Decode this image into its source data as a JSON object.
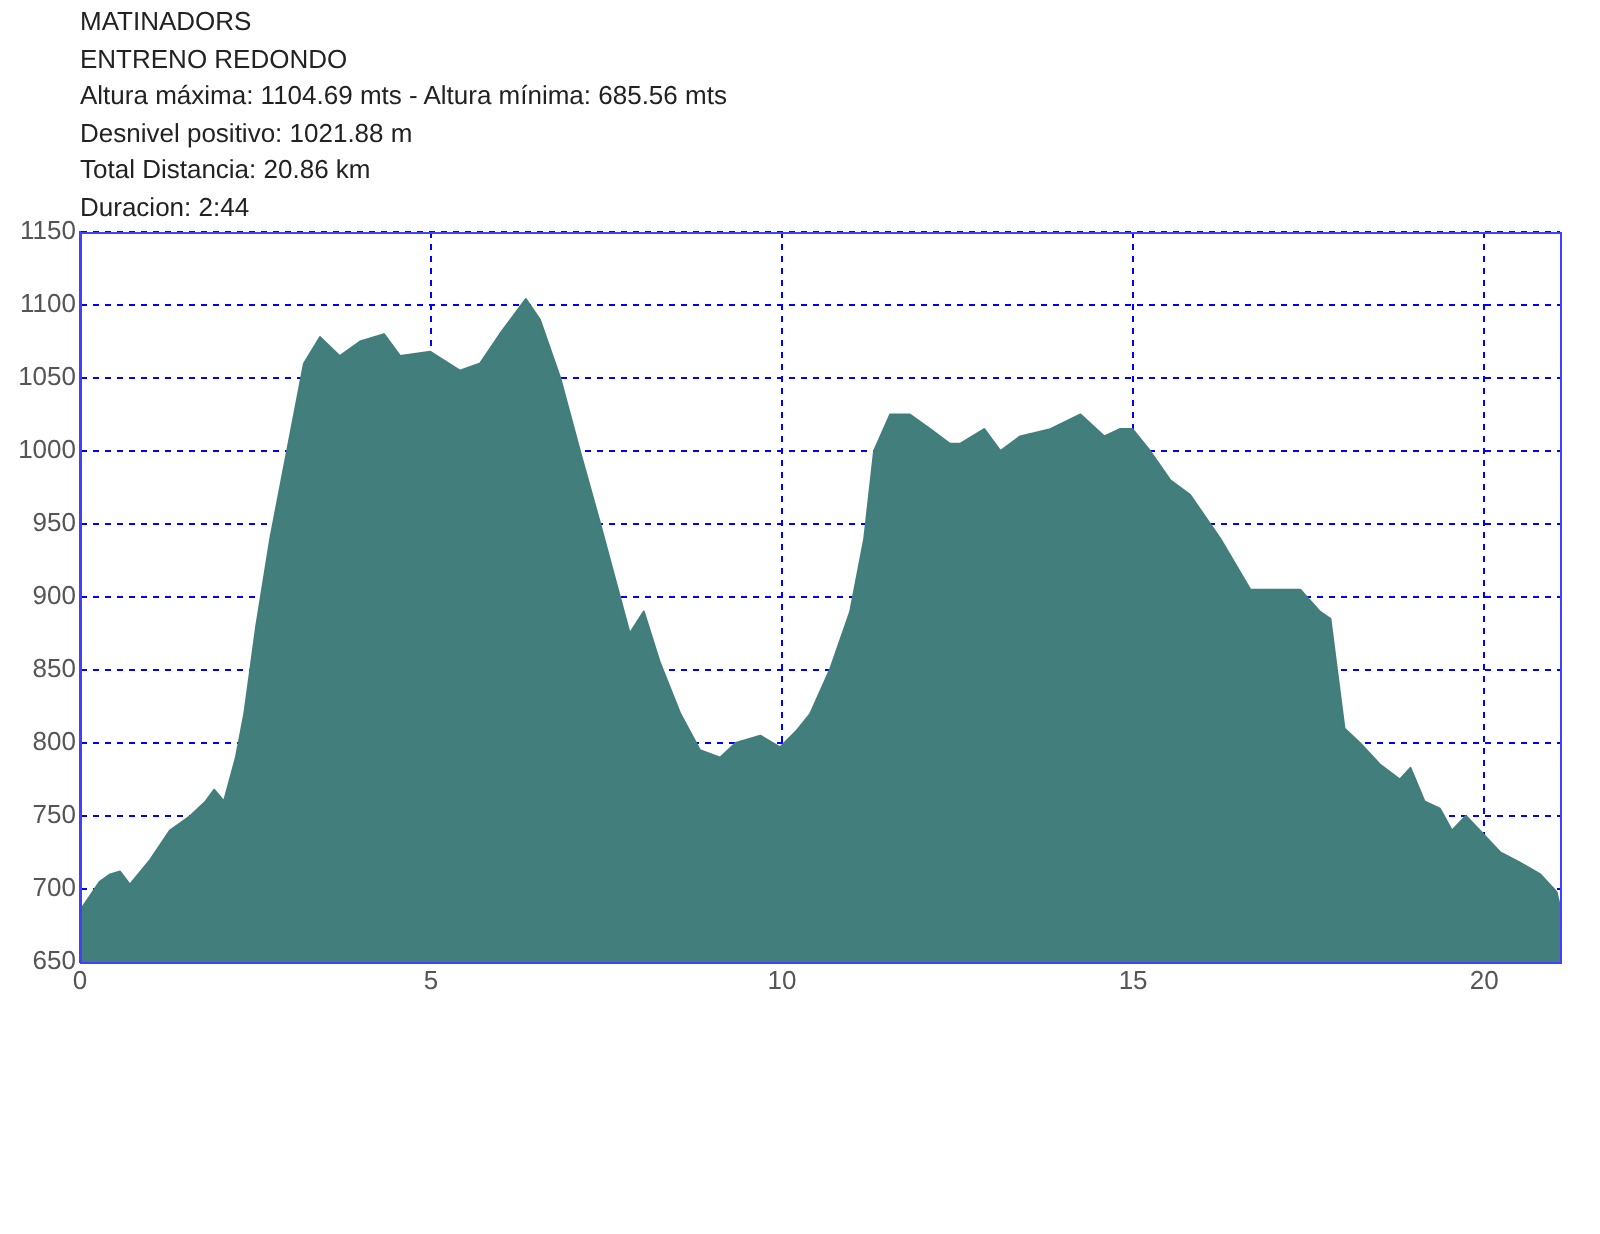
{
  "chart_data": {
    "type": "area",
    "title": "MATINADORS",
    "subtitle": "ENTRENO REDONDO",
    "annotations": [
      "Altura máxima: 1104.69 mts - Altura mínima: 685.56 mts",
      "Desnivel positivo: 1021.88 m",
      "Total Distancia: 20.86 km",
      "Duracion: 2:44"
    ],
    "x": [
      0,
      0.14,
      0.28,
      0.43,
      0.57,
      0.71,
      1.0,
      1.28,
      1.57,
      1.79,
      1.91,
      2.05,
      2.22,
      2.34,
      2.51,
      2.71,
      2.99,
      3.19,
      3.42,
      3.7,
      3.99,
      4.33,
      4.56,
      4.99,
      5.41,
      5.7,
      5.98,
      6.35,
      6.55,
      6.84,
      7.12,
      7.41,
      7.69,
      7.83,
      8.03,
      8.26,
      8.55,
      8.83,
      9.12,
      9.34,
      9.69,
      9.97,
      10.2,
      10.4,
      10.68,
      10.97,
      11.17,
      11.31,
      11.54,
      11.82,
      12.11,
      12.39,
      12.54,
      12.88,
      13.11,
      13.39,
      13.82,
      14.25,
      14.59,
      14.81,
      14.99,
      15.24,
      15.53,
      15.81,
      16.24,
      16.67,
      17.09,
      17.38,
      17.66,
      17.81,
      18.01,
      18.23,
      18.52,
      18.8,
      18.95,
      19.15,
      19.37,
      19.54,
      19.74,
      19.94,
      20.23,
      20.51,
      20.8,
      21.03,
      21.08
    ],
    "values": [
      685,
      695,
      705,
      710,
      712,
      703,
      720,
      740,
      750,
      760,
      768,
      760,
      790,
      820,
      880,
      940,
      1010,
      1060,
      1078,
      1065,
      1075,
      1080,
      1065,
      1068,
      1055,
      1060,
      1080,
      1104,
      1090,
      1050,
      1000,
      950,
      900,
      875,
      890,
      855,
      820,
      795,
      790,
      800,
      805,
      797,
      808,
      820,
      850,
      890,
      940,
      1000,
      1025,
      1025,
      1015,
      1005,
      1005,
      1015,
      1000,
      1010,
      1015,
      1025,
      1010,
      1015,
      1015,
      1000,
      980,
      970,
      940,
      905,
      905,
      905,
      890,
      885,
      810,
      800,
      785,
      775,
      783,
      760,
      755,
      740,
      750,
      740,
      725,
      718,
      710,
      698,
      688
    ],
    "color": "#417e7c",
    "xlim": [
      0,
      21.08
    ],
    "ylim": [
      650,
      1150
    ],
    "xticks": [
      0,
      5,
      10,
      15,
      20
    ],
    "yticks": [
      650,
      700,
      750,
      800,
      850,
      900,
      950,
      1000,
      1050,
      1100,
      1150
    ],
    "grid": true
  }
}
